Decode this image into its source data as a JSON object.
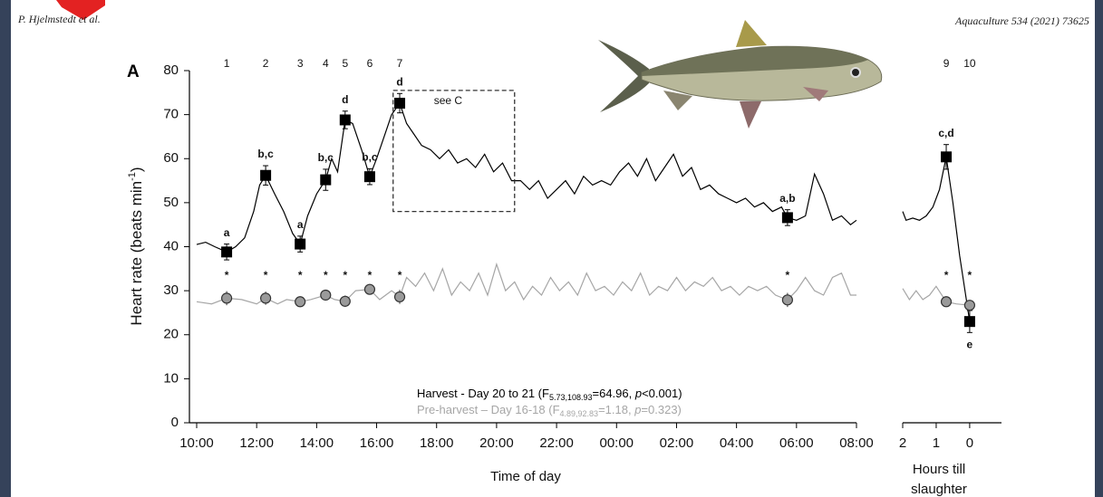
{
  "header": {
    "left": "P. Hjelmstedt et al.",
    "right": "Aquaculture 534 (2021) 73625"
  },
  "chart_data": [
    {
      "type": "line",
      "panel": "A",
      "ylabel": [
        "Heart rate (beats min",
        "-1",
        ")"
      ],
      "xlabel": [
        "Time of day"
      ],
      "xlim": [
        0,
        22
      ],
      "ylim": [
        0,
        80
      ],
      "yticks": [
        0,
        10,
        20,
        30,
        40,
        50,
        60,
        70,
        80
      ],
      "xticks": [
        {
          "value": 0,
          "label": "10:00"
        },
        {
          "value": 2,
          "label": "12:00"
        },
        {
          "value": 4,
          "label": "14:00"
        },
        {
          "value": 6,
          "label": "16:00"
        },
        {
          "value": 8,
          "label": "18:00"
        },
        {
          "value": 10,
          "label": "20:00"
        },
        {
          "value": 12,
          "label": "22:00"
        },
        {
          "value": 14,
          "label": "00:00"
        },
        {
          "value": 16,
          "label": "02:00"
        },
        {
          "value": 18,
          "label": "04:00"
        },
        {
          "value": 20,
          "label": "06:00"
        },
        {
          "value": 22,
          "label": "08:00"
        }
      ],
      "series": [
        {
          "name": "Harvest - Day 20 to 21",
          "stat": [
            " (F",
            "5.73,108.93",
            "=64.96, ",
            "p",
            "<0.001)"
          ],
          "color": "#000000",
          "x": [
            0,
            0.3,
            0.6,
            1.0,
            1.3,
            1.6,
            1.9,
            2.1,
            2.3,
            2.6,
            2.9,
            3.2,
            3.45,
            3.7,
            4.0,
            4.3,
            4.5,
            4.7,
            4.95,
            5.2,
            5.5,
            5.77,
            6.0,
            6.3,
            6.5,
            6.77,
            7.0,
            7.2,
            7.5,
            7.8,
            8.1,
            8.4,
            8.7,
            9.0,
            9.3,
            9.6,
            9.9,
            10.2,
            10.5,
            10.8,
            11.1,
            11.4,
            11.7,
            12.0,
            12.3,
            12.6,
            12.9,
            13.2,
            13.5,
            13.8,
            14.1,
            14.4,
            14.7,
            15.0,
            15.3,
            15.6,
            15.9,
            16.2,
            16.5,
            16.8,
            17.1,
            17.4,
            17.7,
            18.0,
            18.3,
            18.6,
            18.9,
            19.2,
            19.5,
            19.7,
            20.0,
            20.3,
            20.6,
            20.9,
            21.2,
            21.5,
            21.8,
            22.0
          ],
          "values": [
            40.5,
            41,
            40,
            38.8,
            40,
            42,
            48,
            54,
            56.2,
            52,
            48,
            43,
            40.6,
            47,
            52,
            55.2,
            60,
            57,
            68.8,
            68,
            62,
            55.9,
            60,
            66,
            70,
            72.6,
            68,
            66,
            63,
            62,
            60,
            62,
            59,
            60,
            58,
            61,
            57,
            59,
            55,
            55,
            53,
            55,
            51,
            53,
            55,
            52,
            56,
            54,
            55,
            54,
            57,
            59,
            56,
            60,
            55,
            58,
            61,
            56,
            58,
            53,
            54,
            52,
            51,
            50,
            51,
            49,
            50,
            48,
            49,
            46.6,
            46,
            47,
            56.5,
            52,
            46,
            47,
            45,
            46
          ]
        },
        {
          "name": "Pre-harvest – Day 16-18",
          "stat": [
            " (F",
            "4.89,92.83",
            "=1.18, ",
            "p",
            "=0.323)"
          ],
          "color": "#a6a6a6",
          "x": [
            0,
            0.5,
            1.0,
            1.5,
            2.0,
            2.3,
            2.7,
            3.0,
            3.45,
            3.8,
            4.3,
            4.6,
            4.95,
            5.3,
            5.77,
            6.1,
            6.5,
            6.77,
            7.0,
            7.3,
            7.6,
            7.9,
            8.2,
            8.5,
            8.8,
            9.1,
            9.4,
            9.7,
            10.0,
            10.3,
            10.6,
            10.9,
            11.2,
            11.5,
            11.8,
            12.1,
            12.4,
            12.7,
            13.0,
            13.3,
            13.6,
            13.9,
            14.2,
            14.5,
            14.8,
            15.1,
            15.4,
            15.7,
            16.0,
            16.3,
            16.6,
            16.9,
            17.2,
            17.5,
            17.8,
            18.1,
            18.4,
            18.7,
            19.0,
            19.3,
            19.7,
            20.0,
            20.3,
            20.6,
            20.9,
            21.2,
            21.5,
            21.8,
            22.0
          ],
          "values": [
            27.5,
            27,
            28.3,
            28,
            27,
            28.3,
            27,
            28,
            27.5,
            28,
            29,
            28,
            27.6,
            30,
            30.3,
            28,
            30,
            28.6,
            33,
            31,
            34,
            30,
            35,
            29,
            32,
            30,
            34,
            29,
            36,
            30,
            32,
            28,
            31,
            29,
            33,
            30,
            32,
            29,
            34,
            30,
            31,
            29,
            32,
            30,
            34,
            29,
            31,
            30,
            33,
            30,
            32,
            31,
            33,
            30,
            31,
            29,
            31,
            30,
            31,
            29,
            27.9,
            30,
            33,
            30,
            29,
            33,
            34,
            29,
            29
          ]
        }
      ],
      "points": [
        {
          "time": 1.0,
          "sample": "1",
          "harvest": 38.8,
          "harvest_err": 1.8,
          "letters": "a",
          "pre": 28.3,
          "pre_err": 1.6,
          "sig": "*"
        },
        {
          "time": 2.3,
          "sample": "2",
          "harvest": 56.2,
          "harvest_err": 2.2,
          "letters": "b,c",
          "pre": 28.3,
          "pre_err": 1.5,
          "sig": "*"
        },
        {
          "time": 3.45,
          "sample": "3",
          "harvest": 40.6,
          "harvest_err": 1.8,
          "letters": "a",
          "pre": 27.5,
          "pre_err": 1.2,
          "sig": "*"
        },
        {
          "time": 4.3,
          "sample": "4",
          "harvest": 55.2,
          "harvest_err": 2.4,
          "letters": "b,c",
          "pre": 29.0,
          "pre_err": 1.2,
          "sig": "*"
        },
        {
          "time": 4.95,
          "sample": "5",
          "harvest": 68.8,
          "harvest_err": 2.0,
          "letters": "d",
          "pre": 27.6,
          "pre_err": 1.3,
          "sig": "*"
        },
        {
          "time": 5.77,
          "sample": "6",
          "harvest": 55.9,
          "harvest_err": 1.8,
          "letters": "b,c",
          "pre": 30.3,
          "pre_err": 1.2,
          "sig": "*"
        },
        {
          "time": 6.77,
          "sample": "7",
          "harvest": 72.6,
          "harvest_err": 2.2,
          "letters": "d",
          "pre": 28.6,
          "pre_err": 1.6,
          "sig": "*"
        },
        {
          "time": 19.7,
          "sample": null,
          "harvest": 46.6,
          "harvest_err": 1.8,
          "letters": "a,b",
          "pre": 27.9,
          "pre_err": 1.6,
          "sig": "*"
        }
      ],
      "box": {
        "label": "see C",
        "x": [
          6.55,
          10.6
        ],
        "y": [
          48,
          75.5
        ]
      }
    },
    {
      "type": "line",
      "xlabel": [
        "Hours till",
        "slaughter"
      ],
      "xlim": [
        2,
        -0.95
      ],
      "ylim": [
        0,
        80
      ],
      "xticks": [
        2,
        1,
        0
      ],
      "series": [
        {
          "color": "#000000",
          "x": [
            2.0,
            1.9,
            1.7,
            1.5,
            1.3,
            1.1,
            0.9,
            0.7,
            0.5,
            0.3,
            0.0
          ],
          "values": [
            48,
            46,
            46.5,
            46,
            47,
            49,
            53,
            60.4,
            50,
            38,
            23
          ]
        },
        {
          "color": "#a6a6a6",
          "x": [
            2.0,
            1.8,
            1.6,
            1.4,
            1.2,
            1.0,
            0.7,
            0.4,
            0.0
          ],
          "values": [
            30.5,
            28,
            30,
            28,
            29,
            31,
            27.5,
            27,
            26.7
          ]
        }
      ],
      "points": [
        {
          "time": 0.7,
          "sample": "9",
          "harvest": 60.4,
          "harvest_err": 2.8,
          "letters": "c,d",
          "pre": 27.5,
          "pre_err": 1.0,
          "sig": "*"
        },
        {
          "time": 0,
          "sample": "10",
          "harvest": 23,
          "harvest_err": 2.5,
          "letters": "e",
          "letters_below": true,
          "pre": 26.7,
          "pre_err": 1.0,
          "sig": "*"
        }
      ]
    }
  ]
}
